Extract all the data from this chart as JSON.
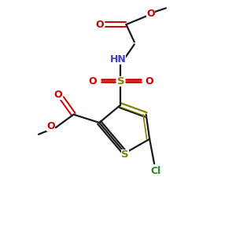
{
  "bg_color": "#ffffff",
  "bond_color": "#1a1a1a",
  "sulfur_color": "#808000",
  "oxygen_color": "#cc0000",
  "nitrogen_color": "#4040bb",
  "chlorine_color": "#228b22",
  "line_width": 1.6,
  "figsize": [
    3.0,
    3.0
  ],
  "dpi": 100,
  "xlim": [
    0,
    10
  ],
  "ylim": [
    0,
    10
  ]
}
